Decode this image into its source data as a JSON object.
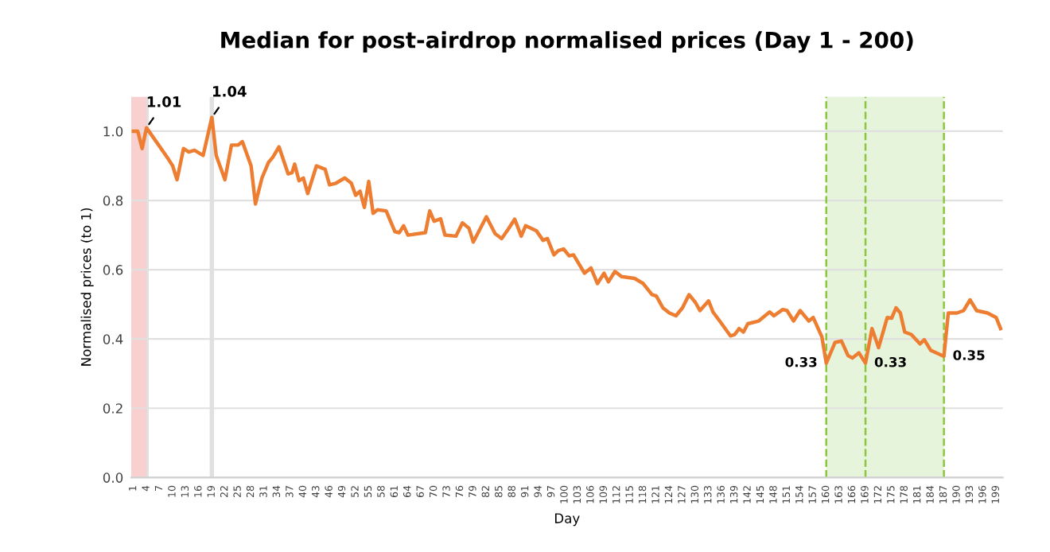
{
  "chart_data": {
    "type": "line",
    "title": "Median for post-airdrop normalised prices (Day 1 - 200)",
    "xlabel": "Day",
    "ylabel": "Normalised prices (to 1)",
    "series": [
      {
        "color": "#ed7d31",
        "x": [
          1,
          2,
          3,
          4,
          9,
          10,
          11,
          12.5,
          13.7,
          15,
          17,
          19,
          20,
          22,
          23.5,
          25,
          26,
          28,
          29,
          30.5,
          32,
          33,
          34.4,
          36.5,
          37.4,
          38,
          39,
          40,
          41,
          43,
          45,
          46,
          47.5,
          49.5,
          51,
          52,
          53,
          54,
          55,
          56,
          57,
          59,
          61,
          62,
          63,
          64,
          68,
          69,
          70,
          71.5,
          72.5,
          75,
          76.5,
          78,
          79,
          82,
          84,
          85.5,
          87,
          88.5,
          90,
          91,
          93.5,
          95,
          96,
          97.5,
          98.5,
          99.7,
          101,
          102,
          104.5,
          106,
          107.5,
          109,
          110,
          111.5,
          113,
          116,
          118,
          120,
          121,
          122.5,
          124,
          125.5,
          127,
          128.5,
          130,
          131,
          133,
          134,
          136,
          138,
          139,
          140,
          141,
          142,
          144.5,
          147,
          148,
          150,
          151,
          152.5,
          154,
          156,
          157,
          159,
          160,
          162,
          163.5,
          165,
          166,
          167.5,
          169,
          170.5,
          172,
          174,
          175,
          176,
          177,
          178,
          179.5,
          181.5,
          182.5,
          184,
          187,
          188,
          190,
          191.5,
          193,
          194.5,
          197,
          199,
          200
        ],
        "values": [
          1.0,
          1.0,
          0.95,
          1.01,
          0.92,
          0.9,
          0.86,
          0.95,
          0.94,
          0.945,
          0.93,
          1.04,
          0.93,
          0.86,
          0.96,
          0.96,
          0.97,
          0.9,
          0.79,
          0.865,
          0.91,
          0.925,
          0.955,
          0.877,
          0.88,
          0.905,
          0.857,
          0.865,
          0.82,
          0.9,
          0.89,
          0.845,
          0.85,
          0.865,
          0.85,
          0.815,
          0.827,
          0.78,
          0.855,
          0.763,
          0.773,
          0.77,
          0.71,
          0.707,
          0.727,
          0.7,
          0.707,
          0.77,
          0.74,
          0.747,
          0.7,
          0.697,
          0.735,
          0.72,
          0.68,
          0.753,
          0.704,
          0.69,
          0.717,
          0.746,
          0.697,
          0.727,
          0.712,
          0.685,
          0.69,
          0.643,
          0.655,
          0.66,
          0.64,
          0.643,
          0.59,
          0.605,
          0.56,
          0.59,
          0.565,
          0.595,
          0.58,
          0.575,
          0.56,
          0.528,
          0.524,
          0.49,
          0.475,
          0.467,
          0.49,
          0.528,
          0.505,
          0.482,
          0.51,
          0.478,
          0.444,
          0.409,
          0.413,
          0.43,
          0.42,
          0.444,
          0.452,
          0.478,
          0.467,
          0.485,
          0.482,
          0.452,
          0.482,
          0.452,
          0.462,
          0.406,
          0.33,
          0.39,
          0.394,
          0.352,
          0.345,
          0.36,
          0.33,
          0.43,
          0.375,
          0.462,
          0.46,
          0.49,
          0.475,
          0.42,
          0.413,
          0.386,
          0.398,
          0.367,
          0.35,
          0.475,
          0.475,
          0.482,
          0.513,
          0.482,
          0.475,
          0.462,
          0.43
        ]
      }
    ],
    "xlim": [
      0.5,
      200.5
    ],
    "xticks": [
      1,
      4,
      7,
      10,
      13,
      16,
      19,
      22,
      25,
      28,
      31,
      34,
      37,
      40,
      43,
      46,
      49,
      52,
      55,
      58,
      61,
      64,
      67,
      70,
      73,
      76,
      79,
      82,
      85,
      88,
      91,
      94,
      97,
      100,
      103,
      106,
      109,
      112,
      115,
      118,
      121,
      124,
      127,
      130,
      133,
      136,
      139,
      142,
      145,
      148,
      151,
      154,
      157,
      160,
      163,
      166,
      169,
      172,
      175,
      178,
      181,
      184,
      187,
      190,
      193,
      196,
      199
    ],
    "ylim": [
      0,
      1.1
    ],
    "yticks": [
      {
        "value": 0,
        "label": "0.0"
      },
      {
        "value": 0.2,
        "label": "0.2"
      },
      {
        "value": 0.4,
        "label": "0.4"
      },
      {
        "value": 0.6,
        "label": "0.6"
      },
      {
        "value": 0.8,
        "label": "0.8"
      },
      {
        "value": 1.0,
        "label": "1.0"
      }
    ],
    "grid": "y",
    "marker": "none",
    "line_style": "solid",
    "annotations": [
      {
        "text": "1.01",
        "x": 4,
        "y": 1.01
      },
      {
        "text": "1.04",
        "x": 19,
        "y": 1.04
      },
      {
        "text": "0.33",
        "x": 160,
        "y": 0.33
      },
      {
        "text": "0.33",
        "x": 169,
        "y": 0.33
      },
      {
        "text": "0.35",
        "x": 187,
        "y": 0.35
      }
    ],
    "bands": [
      {
        "axis": "x",
        "from": 3.5,
        "to": 4.5,
        "color": "#e0e0e0"
      },
      {
        "axis": "x",
        "from": 18.5,
        "to": 19.5,
        "color": "#e0e0e0"
      },
      {
        "axis": "x",
        "from": 0.5,
        "to": 4,
        "color": "#f8d0d0"
      },
      {
        "axis": "x",
        "from": 160,
        "to": 187,
        "color": "#e6f4dc"
      }
    ],
    "ref_lines": [
      {
        "axis": "x",
        "value": 160,
        "color": "#8cc63f",
        "line_style": "dashed"
      },
      {
        "axis": "x",
        "value": 169,
        "color": "#8cc63f",
        "line_style": "dashed"
      },
      {
        "axis": "x",
        "value": 187,
        "color": "#8cc63f",
        "line_style": "dashed"
      }
    ]
  }
}
